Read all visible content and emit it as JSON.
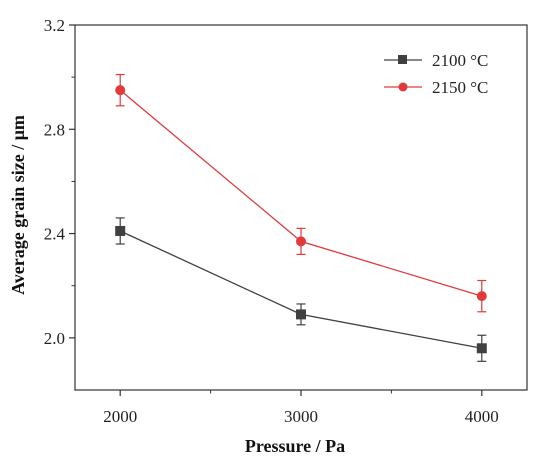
{
  "chart_data": {
    "type": "line",
    "title": "",
    "xlabel": "Pressure / Pa",
    "ylabel": "Average grain size / μm",
    "x": [
      2000,
      3000,
      4000
    ],
    "x_ticks": [
      "2000",
      "3000",
      "4000"
    ],
    "xlim": [
      1750,
      4250
    ],
    "ylim": [
      1.8,
      3.2
    ],
    "y_ticks": [
      "2.0",
      "2.4",
      "2.8",
      "3.2"
    ],
    "grid": false,
    "legend_position": "top-right",
    "series": [
      {
        "name": "2100 °C",
        "marker": "square",
        "color": "#404040",
        "values": [
          2.41,
          2.09,
          1.96
        ],
        "errors": [
          0.05,
          0.04,
          0.05
        ]
      },
      {
        "name": "2150 °C",
        "marker": "circle",
        "color": "#e03a3a",
        "values": [
          2.95,
          2.37,
          2.16
        ],
        "errors": [
          0.06,
          0.05,
          0.06
        ]
      }
    ]
  }
}
